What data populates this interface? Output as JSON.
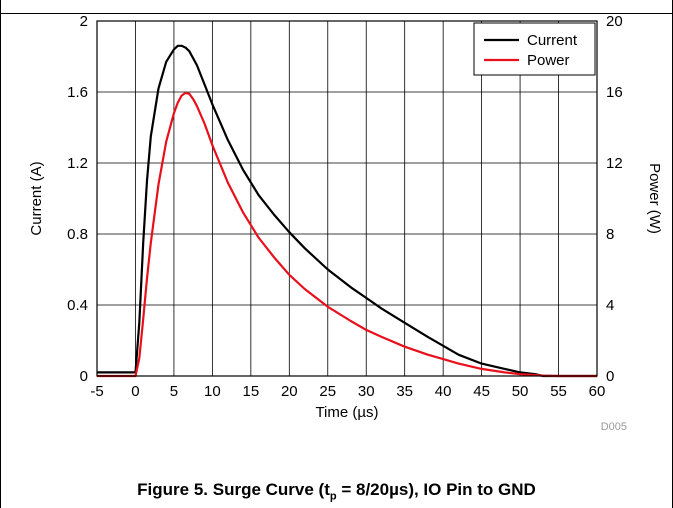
{
  "chart_data": {
    "type": "line",
    "xlabel": "Time (µs)",
    "ylabel": "Current (A)",
    "y2label": "Power (W)",
    "xlim": [
      -5,
      60
    ],
    "ylim": [
      0,
      2
    ],
    "y2lim": [
      0,
      20
    ],
    "xticks": [
      -5,
      0,
      5,
      10,
      15,
      20,
      25,
      30,
      35,
      40,
      45,
      50,
      55,
      60
    ],
    "yticks": [
      "0",
      "0.4",
      "0.8",
      "1.2",
      "1.6",
      "2"
    ],
    "y2ticks": [
      "0",
      "4",
      "8",
      "12",
      "16",
      "20"
    ],
    "grid": true,
    "legend_position": "top-right",
    "figure_id": "D005",
    "series": [
      {
        "name": "Current",
        "axis": "left",
        "color": "#000000",
        "x": [
          -5,
          -1,
          0,
          0.5,
          1,
          1.5,
          2,
          3,
          4,
          5,
          5.5,
          6,
          6.5,
          7,
          8,
          9,
          10,
          12,
          14,
          16,
          18,
          20,
          22,
          25,
          28,
          30,
          32,
          35,
          38,
          40,
          42,
          45,
          48,
          50,
          52,
          53,
          55,
          60
        ],
        "y": [
          0.02,
          0.02,
          0.02,
          0.3,
          0.75,
          1.1,
          1.35,
          1.62,
          1.77,
          1.84,
          1.86,
          1.86,
          1.85,
          1.83,
          1.75,
          1.64,
          1.53,
          1.33,
          1.16,
          1.02,
          0.91,
          0.81,
          0.72,
          0.6,
          0.5,
          0.44,
          0.38,
          0.3,
          0.22,
          0.17,
          0.12,
          0.07,
          0.04,
          0.02,
          0.01,
          0.0,
          0.0,
          0.0
        ]
      },
      {
        "name": "Power",
        "axis": "right",
        "color": "#e8101a",
        "x": [
          -5,
          -1,
          0,
          0.5,
          1,
          1.5,
          2,
          3,
          4,
          5,
          5.5,
          6,
          6.5,
          7,
          7.5,
          8,
          9,
          10,
          12,
          14,
          16,
          18,
          20,
          22,
          25,
          28,
          30,
          32,
          35,
          38,
          40,
          42,
          45,
          48,
          50,
          52,
          53,
          55,
          60
        ],
        "y": [
          0,
          0,
          0,
          1.0,
          3.2,
          5.5,
          7.5,
          10.8,
          13.2,
          14.8,
          15.4,
          15.8,
          15.95,
          15.9,
          15.6,
          15.2,
          14.2,
          13.0,
          10.9,
          9.2,
          7.8,
          6.7,
          5.7,
          4.9,
          3.9,
          3.1,
          2.6,
          2.2,
          1.65,
          1.2,
          0.95,
          0.7,
          0.4,
          0.2,
          0.1,
          0.05,
          0.02,
          0,
          0
        ]
      }
    ]
  },
  "caption": {
    "prefix": "Figure 5. Surge Curve (t",
    "sub": "p",
    "suffix": " = 8/20µs), IO Pin to GND"
  }
}
